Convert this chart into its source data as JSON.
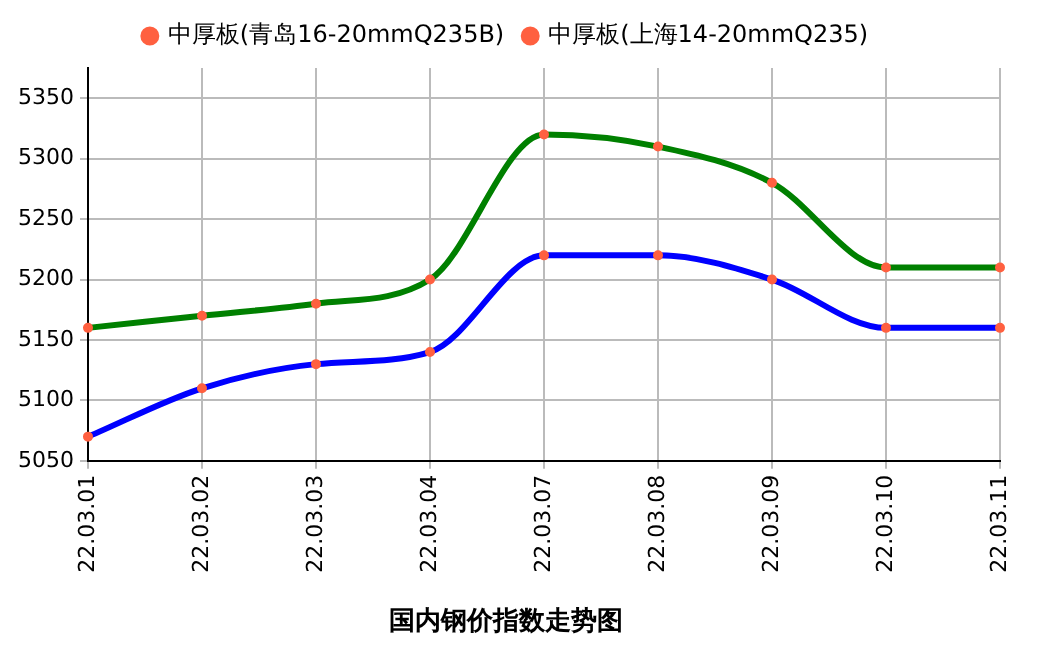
{
  "chart_data": {
    "type": "line",
    "title": "国内钢价指数走势图",
    "categories": [
      "22.03.01",
      "22.03.02",
      "22.03.03",
      "22.03.04",
      "22.03.07",
      "22.03.08",
      "22.03.09",
      "22.03.10",
      "22.03.11"
    ],
    "series": [
      {
        "name": "中厚板(青岛16-20mmQ235B)",
        "color": "#008000",
        "values": [
          5160,
          5170,
          5180,
          5200,
          5320,
          5310,
          5280,
          5210,
          5210
        ]
      },
      {
        "name": "中厚板(上海14-20mmQ235)",
        "color": "#0000ff",
        "values": [
          5070,
          5110,
          5130,
          5140,
          5220,
          5220,
          5200,
          5160,
          5160
        ]
      }
    ],
    "ylim": [
      5050,
      5375
    ],
    "yticks": [
      5050,
      5100,
      5150,
      5200,
      5250,
      5300,
      5350
    ],
    "grid": true,
    "legend": "top",
    "marker": "circle",
    "line_style": "solid"
  }
}
